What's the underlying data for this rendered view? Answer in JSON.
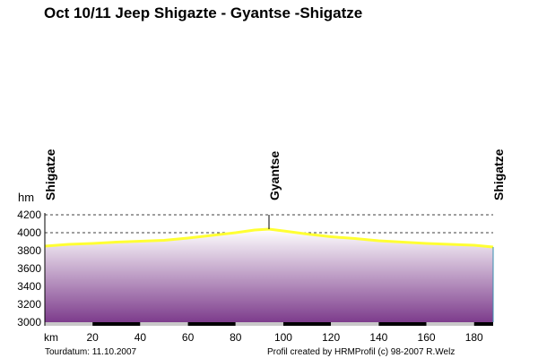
{
  "chart_data": {
    "type": "area",
    "title": "Oct 10/11 Jeep Shigazte - Gyantse -Shigatze",
    "xlabel": "km",
    "ylabel": "hm",
    "xlim": [
      0,
      188
    ],
    "ylim": [
      3000,
      4200
    ],
    "x_ticks": [
      20,
      40,
      60,
      80,
      100,
      120,
      140,
      160,
      180
    ],
    "y_ticks": [
      3000,
      3200,
      3400,
      3600,
      3800,
      4000,
      4200
    ],
    "grid": "horizontal dashed",
    "series": [
      {
        "color": "#ffff33",
        "x": [
          0,
          10,
          20,
          30,
          40,
          50,
          60,
          70,
          80,
          88,
          94,
          100,
          110,
          120,
          130,
          140,
          150,
          160,
          170,
          180,
          188
        ],
        "y": [
          3850,
          3870,
          3880,
          3895,
          3905,
          3915,
          3940,
          3970,
          4000,
          4030,
          4040,
          4020,
          3985,
          3955,
          3935,
          3910,
          3895,
          3880,
          3870,
          3860,
          3840
        ]
      }
    ],
    "waypoints": [
      {
        "label": "Shigatze",
        "x": 0
      },
      {
        "label": "Gyantse",
        "x": 94
      },
      {
        "label": "Shigatze",
        "x": 188
      }
    ]
  },
  "footer": {
    "date": "Tourdatum: 11.10.2007",
    "credit": "Profil created by HRMProfil (c) 98-2007 R.Welz"
  },
  "colors": {
    "line": "#ffff33",
    "fill_top": "#ffffff",
    "fill_bottom": "#7d3c8c"
  }
}
